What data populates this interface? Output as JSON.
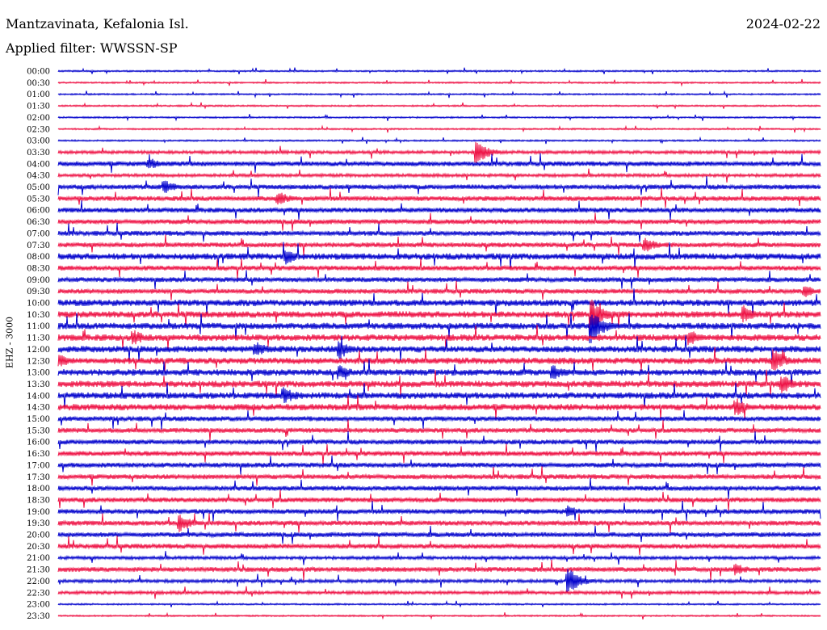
{
  "header": {
    "station": "Mantzavinata, Kefalonia Isl.",
    "date": "2024-02-22",
    "filter": "Applied filter: WWSSN-SP"
  },
  "chart_data": {
    "type": "line",
    "ylabel": "EHZ - 3000",
    "colors": [
      "#0000cc",
      "#ee1144"
    ],
    "tick_labels": [
      "00:00",
      "00:30",
      "01:00",
      "01:30",
      "02:00",
      "02:30",
      "03:00",
      "03:30",
      "04:00",
      "04:30",
      "05:00",
      "05:30",
      "06:00",
      "06:30",
      "07:00",
      "07:30",
      "08:00",
      "08:30",
      "09:00",
      "09:30",
      "10:00",
      "10:30",
      "11:00",
      "11:30",
      "12:00",
      "12:30",
      "13:00",
      "13:30",
      "14:00",
      "14:30",
      "15:00",
      "15:30",
      "16:00",
      "16:30",
      "17:00",
      "17:30",
      "18:00",
      "18:30",
      "19:00",
      "19:30",
      "20:00",
      "20:30",
      "21:00",
      "21:30",
      "22:00",
      "22:30",
      "23:00",
      "23:30"
    ],
    "series_amplitude": [
      1,
      1,
      1,
      1,
      1,
      1,
      1,
      2,
      3,
      2,
      3,
      3,
      3,
      3,
      3,
      3,
      4,
      3,
      3,
      3,
      4,
      4,
      4,
      4,
      4,
      4,
      4,
      4,
      4,
      4,
      3,
      3,
      3,
      3,
      3,
      3,
      3,
      3,
      3,
      3,
      3,
      3,
      2,
      3,
      2,
      2,
      1,
      1
    ],
    "events": [
      {
        "row": 7,
        "t": 0.55,
        "amp": 14
      },
      {
        "row": 8,
        "t": 0.12,
        "amp": 8
      },
      {
        "row": 10,
        "t": 0.14,
        "amp": 9
      },
      {
        "row": 11,
        "t": 0.29,
        "amp": 9
      },
      {
        "row": 15,
        "t": 0.77,
        "amp": 10
      },
      {
        "row": 16,
        "t": 0.3,
        "amp": 10
      },
      {
        "row": 19,
        "t": 0.98,
        "amp": 8
      },
      {
        "row": 21,
        "t": 0.7,
        "amp": 20
      },
      {
        "row": 21,
        "t": 0.9,
        "amp": 10
      },
      {
        "row": 22,
        "t": 0.7,
        "amp": 22
      },
      {
        "row": 23,
        "t": 0.1,
        "amp": 10
      },
      {
        "row": 23,
        "t": 0.83,
        "amp": 10
      },
      {
        "row": 24,
        "t": 0.37,
        "amp": 12
      },
      {
        "row": 24,
        "t": 0.26,
        "amp": 10
      },
      {
        "row": 25,
        "t": 0.0,
        "amp": 10
      },
      {
        "row": 25,
        "t": 0.94,
        "amp": 14
      },
      {
        "row": 26,
        "t": 0.37,
        "amp": 10
      },
      {
        "row": 26,
        "t": 0.65,
        "amp": 10
      },
      {
        "row": 27,
        "t": 0.95,
        "amp": 12
      },
      {
        "row": 28,
        "t": 0.3,
        "amp": 10
      },
      {
        "row": 29,
        "t": 0.89,
        "amp": 12
      },
      {
        "row": 39,
        "t": 0.16,
        "amp": 12
      },
      {
        "row": 38,
        "t": 0.67,
        "amp": 8
      },
      {
        "row": 43,
        "t": 0.89,
        "amp": 8
      },
      {
        "row": 44,
        "t": 0.67,
        "amp": 16
      }
    ]
  }
}
